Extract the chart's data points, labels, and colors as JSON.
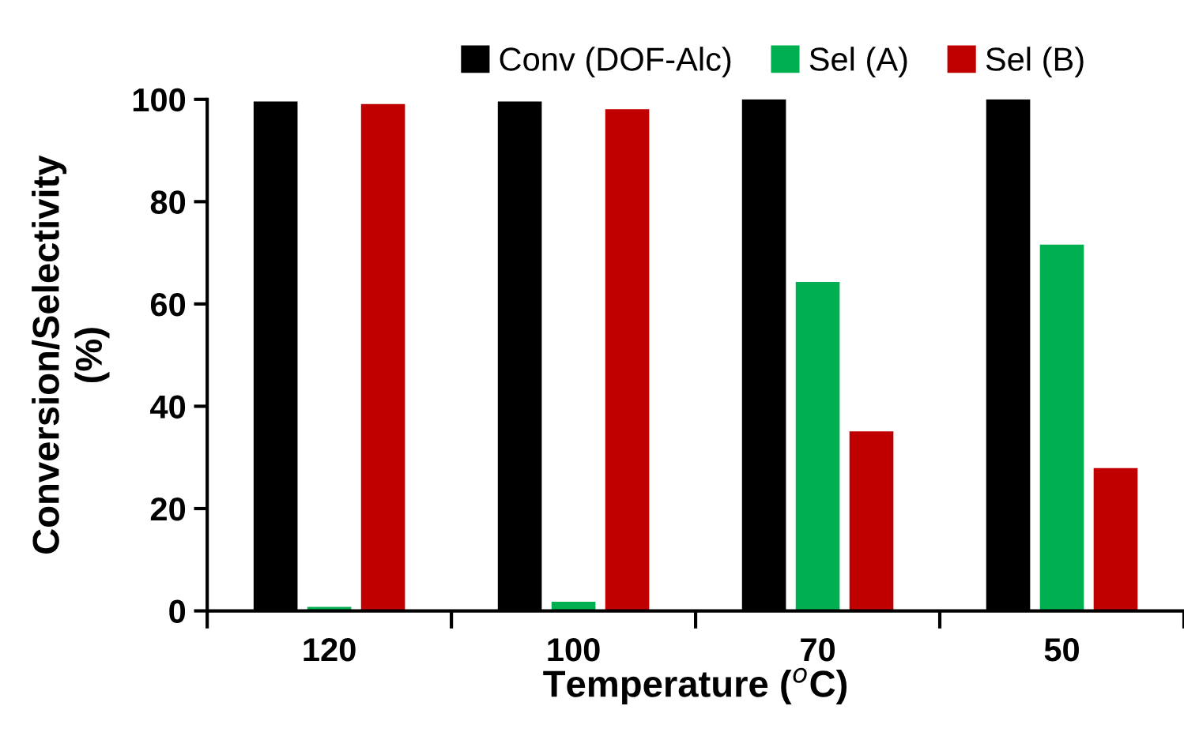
{
  "chart_data": {
    "type": "bar",
    "xlabel": "Temperature ($^{o}$C)",
    "ylabel": "Conversion/Selectivity\n(%)",
    "categories": [
      "120",
      "100",
      "70",
      "50"
    ],
    "series": [
      {
        "name": "Conv (DOF-Alc)",
        "color": "#000000",
        "values": [
          99.6,
          99.6,
          100,
          100
        ]
      },
      {
        "name": "Sel (A)",
        "color": "#00b050",
        "values": [
          0.8,
          1.8,
          64.3,
          71.6
        ]
      },
      {
        "name": "Sel (B)",
        "color": "#c00000",
        "values": [
          99.1,
          98.1,
          35.1,
          27.9
        ]
      }
    ],
    "ylim": [
      0,
      100
    ],
    "yticks": [
      0,
      20,
      40,
      60,
      80,
      100
    ],
    "grid": false,
    "legend": "top"
  }
}
